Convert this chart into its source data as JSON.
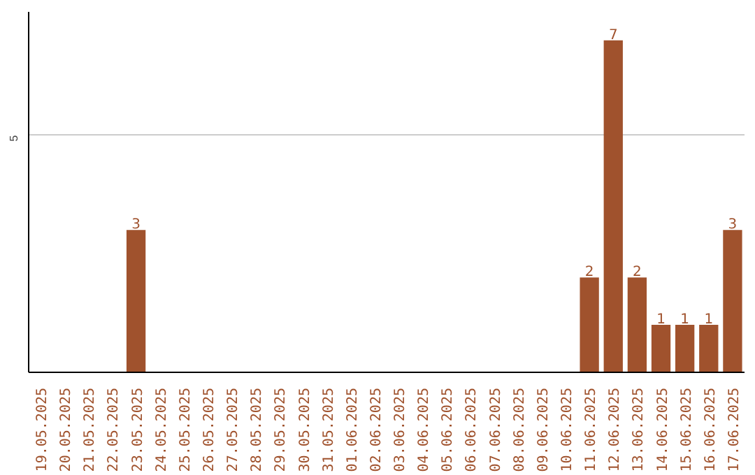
{
  "chart_data": {
    "type": "bar",
    "categories": [
      "19.05.2025",
      "20.05.2025",
      "21.05.2025",
      "22.05.2025",
      "23.05.2025",
      "24.05.2025",
      "25.05.2025",
      "26.05.2025",
      "27.05.2025",
      "28.05.2025",
      "29.05.2025",
      "30.05.2025",
      "31.05.2025",
      "01.06.2025",
      "02.06.2025",
      "03.06.2025",
      "04.06.2025",
      "05.06.2025",
      "06.06.2025",
      "07.06.2025",
      "08.06.2025",
      "09.06.2025",
      "10.06.2025",
      "11.06.2025",
      "12.06.2025",
      "13.06.2025",
      "14.06.2025",
      "15.06.2025",
      "16.06.2025",
      "17.06.2025"
    ],
    "values": [
      0,
      0,
      0,
      0,
      3,
      0,
      0,
      0,
      0,
      0,
      0,
      0,
      0,
      0,
      0,
      0,
      0,
      0,
      0,
      0,
      0,
      0,
      0,
      2,
      7,
      2,
      1,
      1,
      1,
      3
    ],
    "value_labels": [
      null,
      null,
      null,
      null,
      "3",
      null,
      null,
      null,
      null,
      null,
      null,
      null,
      null,
      null,
      null,
      null,
      null,
      null,
      null,
      null,
      null,
      null,
      null,
      "2",
      "7",
      "2",
      "1",
      "1",
      "1",
      "3"
    ],
    "color": "#a0522d",
    "ylim": [
      0,
      7.6
    ],
    "yticks": [
      5
    ],
    "grid": "y"
  }
}
